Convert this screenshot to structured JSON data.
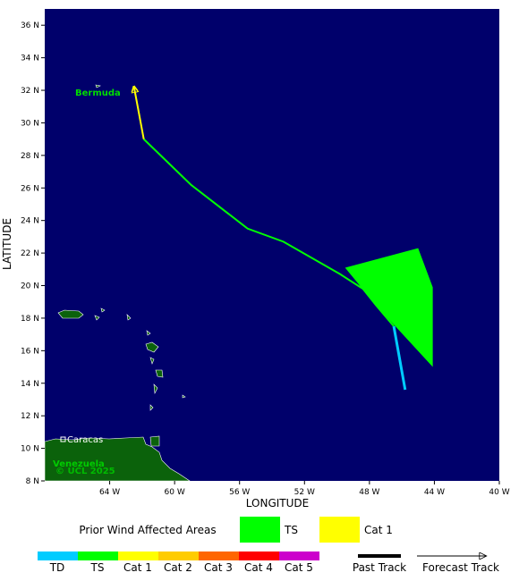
{
  "chart_data": {
    "type": "map",
    "xlabel": "LONGITUDE",
    "ylabel": "LATITUDE",
    "xlim": [
      -68,
      -40
    ],
    "ylim": [
      8,
      37
    ],
    "xticks": [
      {
        "value": -64,
        "label": "64 W"
      },
      {
        "value": -60,
        "label": "60 W"
      },
      {
        "value": -56,
        "label": "56 W"
      },
      {
        "value": -52,
        "label": "52 W"
      },
      {
        "value": -48,
        "label": "48 W"
      },
      {
        "value": -44,
        "label": "44 W"
      },
      {
        "value": -40,
        "label": "40 W"
      }
    ],
    "yticks": [
      {
        "value": 8,
        "label": "8 N"
      },
      {
        "value": 10,
        "label": "10 N"
      },
      {
        "value": 12,
        "label": "12 N"
      },
      {
        "value": 14,
        "label": "14 N"
      },
      {
        "value": 16,
        "label": "16 N"
      },
      {
        "value": 18,
        "label": "18 N"
      },
      {
        "value": 20,
        "label": "20 N"
      },
      {
        "value": 22,
        "label": "22 N"
      },
      {
        "value": 24,
        "label": "24 N"
      },
      {
        "value": 26,
        "label": "26 N"
      },
      {
        "value": 28,
        "label": "28 N"
      },
      {
        "value": 30,
        "label": "30 N"
      },
      {
        "value": 32,
        "label": "32 N"
      },
      {
        "value": 34,
        "label": "34 N"
      },
      {
        "value": 36,
        "label": "36 N"
      }
    ],
    "ocean_color": "#00006b",
    "places": [
      "Bermuda",
      "Caracas",
      "Venezuela"
    ],
    "credit": "© UCL 2025",
    "wind_area": {
      "color": "#00ff00",
      "x": [
        -49.5,
        -45.0,
        -44.1,
        -44.1,
        -47.6
      ],
      "y": [
        21.1,
        22.3,
        19.9,
        15.0,
        18.8
      ]
    },
    "series": [
      {
        "color": "#00ccff",
        "x": [
          -45.8,
          -46.5
        ],
        "y": [
          13.6,
          17.5
        ]
      },
      {
        "color": "#00ff00",
        "x": [
          -46.5,
          -47.6,
          -48.4,
          -49.8,
          -53.3,
          -55.5,
          -59.0,
          -61.9
        ],
        "y": [
          17.5,
          18.8,
          19.8,
          20.7,
          22.7,
          23.5,
          26.2,
          29.0
        ]
      },
      {
        "color": "#ffff00",
        "x": [
          -61.9,
          -62.5
        ],
        "y": [
          29.0,
          32.2
        ]
      }
    ],
    "wind_legend": {
      "title": "Prior Wind Affected Areas",
      "items": [
        {
          "label": "TS",
          "color": "#00ff00"
        },
        {
          "label": "Cat 1",
          "color": "#ffff00"
        }
      ]
    },
    "intensity_scale": [
      {
        "label": "TD",
        "color": "#00ccff"
      },
      {
        "label": "TS",
        "color": "#00ff00"
      },
      {
        "label": "Cat 1",
        "color": "#ffff00"
      },
      {
        "label": "Cat 2",
        "color": "#ffcc00"
      },
      {
        "label": "Cat 3",
        "color": "#ff6600"
      },
      {
        "label": "Cat 4",
        "color": "#ff0000"
      },
      {
        "label": "Cat 5",
        "color": "#cc00cc"
      }
    ],
    "track_legend": [
      "Past Track",
      "Forecast Track"
    ]
  }
}
